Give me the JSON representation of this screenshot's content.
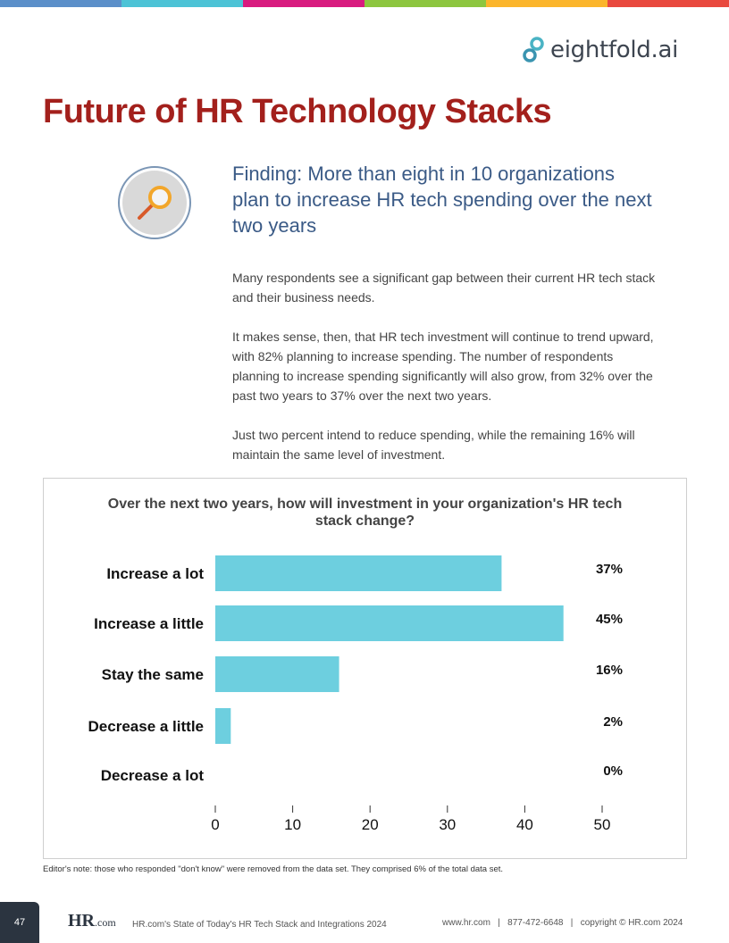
{
  "top_bar_colors": [
    "#5b8fc9",
    "#4cc3d6",
    "#d81b7f",
    "#8dc63f",
    "#fbb52b",
    "#e9493e"
  ],
  "brand": {
    "logo_text": "eightfold.ai"
  },
  "page_title": "Future of HR Technology Stacks",
  "finding": "Finding: More than eight in 10 organizations plan to increase HR tech spending over the next two years",
  "paragraphs": [
    "Many respondents see a significant gap between their current HR tech stack and their business needs.",
    "It makes sense, then, that HR tech investment will continue to trend upward, with 82% planning to increase spending. The number of respondents planning to increase spending significantly will also grow, from 32% over the past two years to 37% over the next two years.",
    "Just two percent intend to reduce spending, while the remaining 16% will maintain the same level of investment."
  ],
  "chart_data": {
    "type": "bar",
    "orientation": "horizontal",
    "title": "Over the next two years, how will investment in your organization's HR tech stack change?",
    "categories": [
      "Increase a lot",
      "Increase a little",
      "Stay the same",
      "Decrease a little",
      "Decrease a lot"
    ],
    "values": [
      37,
      45,
      16,
      2,
      0
    ],
    "data_labels": [
      "37%",
      "45%",
      "16%",
      "2%",
      "0%"
    ],
    "xlim": [
      0,
      50
    ],
    "xticks": [
      "0",
      "10",
      "20",
      "30",
      "40",
      "50"
    ],
    "bar_color": "#6dcfdf",
    "grid": false
  },
  "note": "Editor's note: those who responded \"don't know\" were removed from the data set. They comprised 6% of the total data set.",
  "footer": {
    "page_number": "47",
    "logo": "HR.com",
    "report_title": "HR.com's State of Today's HR Tech Stack and Integrations 2024",
    "contact": "www.hr.com   |   877-472-6648   |   copyright © HR.com 2024"
  }
}
